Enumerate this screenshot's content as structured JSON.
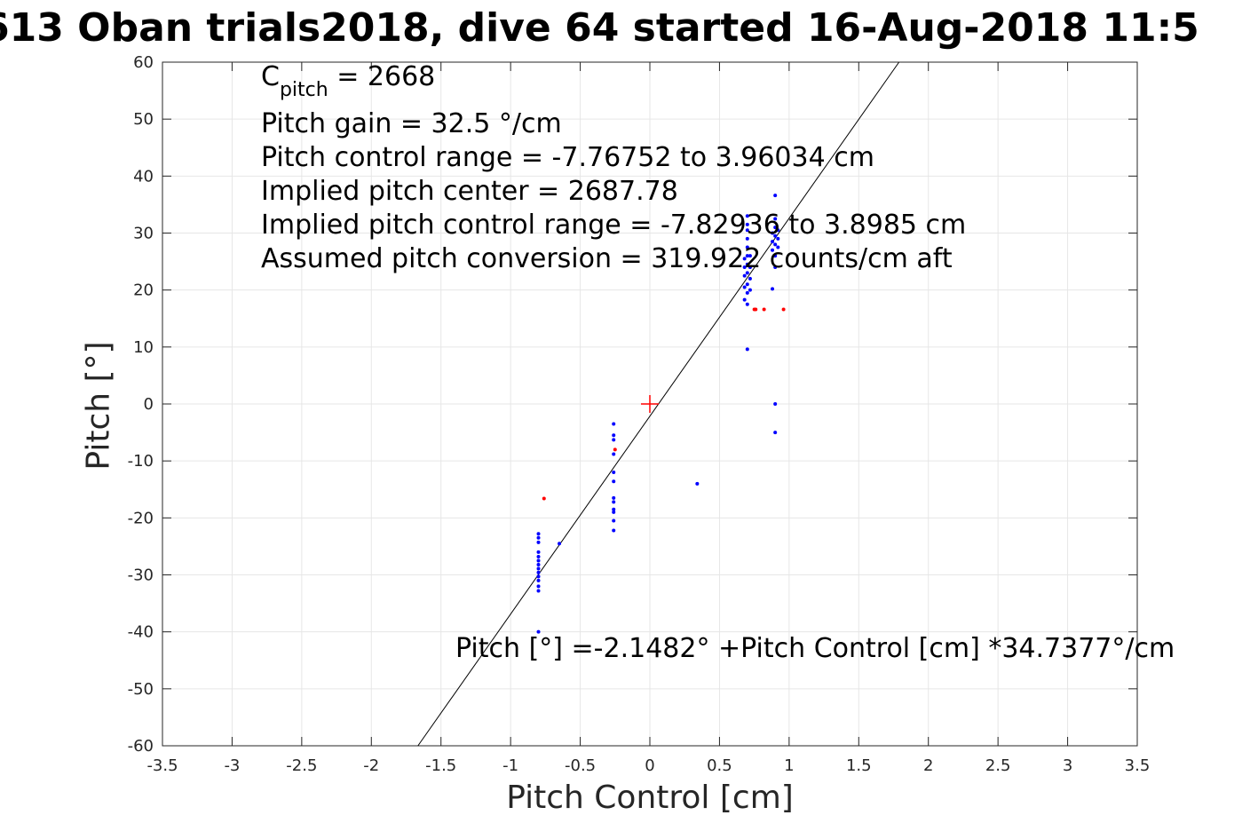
{
  "title": "613 Oban trials2018, dive 64 started 16-Aug-2018 11:5",
  "annotations": {
    "c_pitch_label": "C",
    "c_pitch_sub": "pitch",
    "c_pitch_value": " = 2668",
    "lines": [
      "Pitch gain = 32.5 °/cm",
      "Pitch control range = -7.76752 to 3.96034 cm",
      "Implied pitch center = 2687.78",
      "Implied pitch control range = -7.82936 to 3.8985 cm",
      "Assumed pitch conversion = 319.922 counts/cm aft"
    ],
    "equation": "Pitch [°] =-2.1482° +Pitch Control [cm] *34.7377°/cm"
  },
  "colors": {
    "axis": "#262626",
    "grid": "#e6e6e6",
    "points": "#0000ff",
    "flagged": "#ff0000",
    "fit": "#000000",
    "center_marker": "#ff0000"
  },
  "chart_data": {
    "type": "scatter",
    "title": "613 Oban trials2018, dive 64 started 16-Aug-2018 11:5",
    "xlabel": "Pitch Control [cm]",
    "ylabel": "Pitch [°]",
    "xlim": [
      -3.5,
      3.5
    ],
    "ylim": [
      -60,
      60
    ],
    "xticks": [
      -3.5,
      -3,
      -2.5,
      -2,
      -1.5,
      -1,
      -0.5,
      0,
      0.5,
      1,
      1.5,
      2,
      2.5,
      3,
      3.5
    ],
    "yticks": [
      -60,
      -50,
      -40,
      -30,
      -20,
      -10,
      0,
      10,
      20,
      30,
      40,
      50,
      60
    ],
    "xtick_labels": [
      "-3.5",
      "-3",
      "-2.5",
      "-2",
      "-1.5",
      "-1",
      "-0.5",
      "0",
      "0.5",
      "1",
      "1.5",
      "2",
      "2.5",
      "3",
      "3.5"
    ],
    "ytick_labels": [
      "-60",
      "-50",
      "-40",
      "-30",
      "-20",
      "-10",
      "0",
      "10",
      "20",
      "30",
      "40",
      "50",
      "60"
    ],
    "grid": true,
    "fit_line": {
      "intercept": -2.1482,
      "slope": 34.7377
    },
    "center_marker": {
      "x": 0,
      "y": 0
    },
    "series": [
      {
        "color": "#0000ff",
        "points": [
          [
            -0.8,
            -22.8
          ],
          [
            -0.8,
            -23.5
          ],
          [
            -0.8,
            -24.3
          ],
          [
            -0.8,
            -26.0
          ],
          [
            -0.8,
            -26.8
          ],
          [
            -0.8,
            -27.5
          ],
          [
            -0.8,
            -28.2
          ],
          [
            -0.8,
            -28.9
          ],
          [
            -0.8,
            -29.6
          ],
          [
            -0.8,
            -30.3
          ],
          [
            -0.8,
            -31.0
          ],
          [
            -0.8,
            -32.0
          ],
          [
            -0.8,
            -32.8
          ],
          [
            -0.8,
            -40.0
          ],
          [
            -0.65,
            -24.5
          ],
          [
            -0.26,
            -3.5
          ],
          [
            -0.26,
            -5.5
          ],
          [
            -0.26,
            -6.3
          ],
          [
            -0.26,
            -8.8
          ],
          [
            -0.26,
            -12.0
          ],
          [
            -0.26,
            -13.6
          ],
          [
            -0.26,
            -16.5
          ],
          [
            -0.26,
            -17.2
          ],
          [
            -0.26,
            -18.5
          ],
          [
            -0.26,
            -19.0
          ],
          [
            -0.26,
            -20.5
          ],
          [
            -0.26,
            -22.2
          ],
          [
            0.34,
            -14.0
          ],
          [
            0.68,
            18.3
          ],
          [
            0.68,
            20.5
          ],
          [
            0.68,
            22.5
          ],
          [
            0.68,
            24.0
          ],
          [
            0.68,
            25.5
          ],
          [
            0.7,
            17.5
          ],
          [
            0.7,
            19.5
          ],
          [
            0.7,
            21.0
          ],
          [
            0.7,
            23.0
          ],
          [
            0.7,
            24.5
          ],
          [
            0.7,
            26.0
          ],
          [
            0.7,
            27.5
          ],
          [
            0.7,
            29.0
          ],
          [
            0.7,
            30.5
          ],
          [
            0.7,
            31.5
          ],
          [
            0.7,
            33.0
          ],
          [
            0.7,
            9.6
          ],
          [
            0.72,
            20.0
          ],
          [
            0.72,
            22.0
          ],
          [
            0.72,
            24.0
          ],
          [
            0.72,
            26.0
          ],
          [
            0.88,
            20.2
          ],
          [
            0.88,
            27.0
          ],
          [
            0.88,
            28.5
          ],
          [
            0.88,
            30.0
          ],
          [
            0.9,
            24.0
          ],
          [
            0.9,
            26.0
          ],
          [
            0.9,
            28.0
          ],
          [
            0.9,
            29.5
          ],
          [
            0.9,
            31.0
          ],
          [
            0.9,
            32.5
          ],
          [
            0.9,
            36.6
          ],
          [
            0.9,
            0.0
          ],
          [
            0.9,
            -5.0
          ],
          [
            0.92,
            27.5
          ],
          [
            0.92,
            29.0
          ],
          [
            0.92,
            30.5
          ]
        ]
      },
      {
        "color": "#ff0000",
        "points": [
          [
            -0.76,
            -16.6
          ],
          [
            -0.25,
            -8.0
          ],
          [
            0.75,
            16.6
          ],
          [
            0.76,
            16.6
          ],
          [
            0.82,
            16.6
          ],
          [
            0.96,
            16.6
          ]
        ]
      }
    ]
  }
}
